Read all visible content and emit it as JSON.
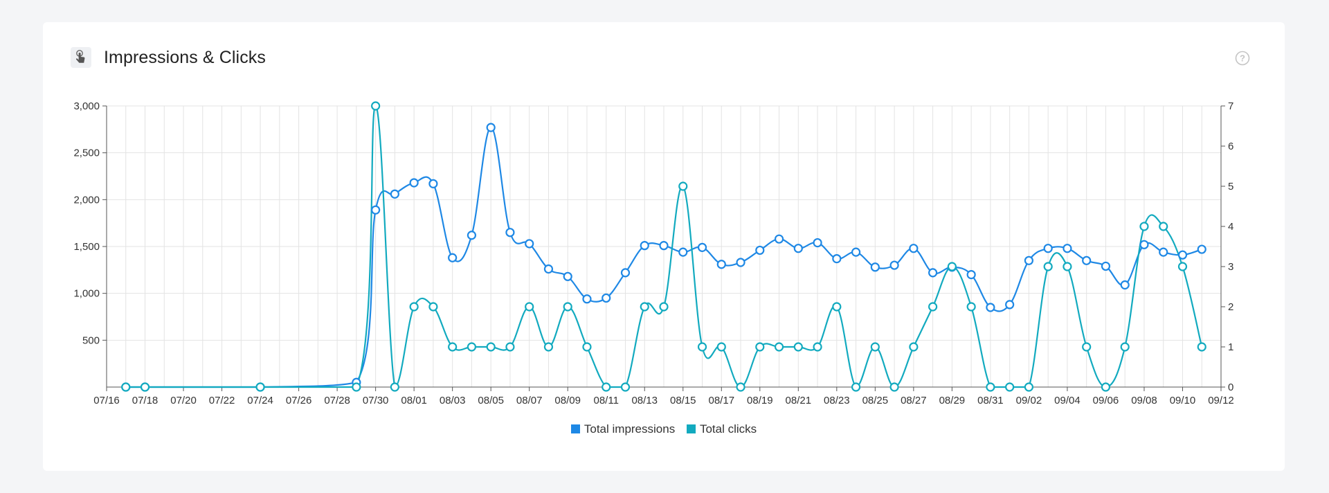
{
  "card": {
    "title": "Impressions & Clicks",
    "title_icon": "touch-icon",
    "help_icon": "question-circle-icon"
  },
  "colors": {
    "impressions": "#1e88e5",
    "clicks": "#12aabf",
    "grid": "#e3e3e3",
    "axis": "#555555"
  },
  "chart_data": {
    "type": "line",
    "title": "Impressions & Clicks",
    "x_ticks": [
      "07/16",
      "07/18",
      "07/20",
      "07/22",
      "07/24",
      "07/26",
      "07/28",
      "07/30",
      "08/01",
      "08/03",
      "08/05",
      "08/07",
      "08/09",
      "08/11",
      "08/13",
      "08/15",
      "08/17",
      "08/19",
      "08/21",
      "08/23",
      "08/25",
      "08/27",
      "08/29",
      "08/31",
      "09/02",
      "09/04",
      "09/06",
      "09/08",
      "09/10",
      "09/12"
    ],
    "x_range": [
      "07/16",
      "09/12"
    ],
    "y_left": {
      "ticks": [
        "500",
        "1,000",
        "1,500",
        "2,000",
        "2,500",
        "3,000"
      ],
      "range": [
        0,
        3000
      ]
    },
    "y_right": {
      "ticks": [
        "0",
        "1",
        "2",
        "3",
        "4",
        "5",
        "6",
        "7"
      ],
      "range": [
        0,
        7
      ]
    },
    "grid": true,
    "legend": "bottom-center",
    "series": [
      {
        "name": "Total impressions",
        "axis": "left",
        "color": "#1e88e5",
        "x": [
          "07/17",
          "07/18",
          "07/24",
          "07/29",
          "07/30",
          "07/31",
          "08/01",
          "08/02",
          "08/03",
          "08/04",
          "08/05",
          "08/06",
          "08/07",
          "08/08",
          "08/09",
          "08/10",
          "08/11",
          "08/12",
          "08/13",
          "08/14",
          "08/15",
          "08/16",
          "08/17",
          "08/18",
          "08/19",
          "08/20",
          "08/21",
          "08/22",
          "08/23",
          "08/24",
          "08/25",
          "08/26",
          "08/27",
          "08/28",
          "08/29",
          "08/30",
          "08/31",
          "09/01",
          "09/02",
          "09/03",
          "09/04",
          "09/05",
          "09/06",
          "09/07",
          "09/08",
          "09/09",
          "09/10",
          "09/11"
        ],
        "values": [
          0,
          0,
          0,
          50,
          1890,
          2060,
          2180,
          2170,
          1380,
          1620,
          2770,
          1650,
          1530,
          1260,
          1180,
          940,
          950,
          1220,
          1510,
          1510,
          1440,
          1490,
          1310,
          1330,
          1460,
          1580,
          1480,
          1540,
          1370,
          1440,
          1280,
          1300,
          1480,
          1220,
          1280,
          1200,
          850,
          880,
          1350,
          1480,
          1480,
          1350,
          1290,
          1090,
          1520,
          1440,
          1410,
          1470
        ]
      },
      {
        "name": "Total clicks",
        "axis": "right",
        "color": "#12aabf",
        "x": [
          "07/17",
          "07/18",
          "07/24",
          "07/29",
          "07/30",
          "07/31",
          "08/01",
          "08/02",
          "08/03",
          "08/04",
          "08/05",
          "08/06",
          "08/07",
          "08/08",
          "08/09",
          "08/10",
          "08/11",
          "08/12",
          "08/13",
          "08/14",
          "08/15",
          "08/16",
          "08/17",
          "08/18",
          "08/19",
          "08/20",
          "08/21",
          "08/22",
          "08/23",
          "08/24",
          "08/25",
          "08/26",
          "08/27",
          "08/28",
          "08/29",
          "08/30",
          "08/31",
          "09/01",
          "09/02",
          "09/03",
          "09/04",
          "09/05",
          "09/06",
          "09/07",
          "09/08",
          "09/09",
          "09/10",
          "09/11"
        ],
        "values": [
          0,
          0,
          0,
          0,
          7,
          0,
          2,
          2,
          1,
          1,
          1,
          1,
          2,
          1,
          2,
          1,
          0,
          0,
          2,
          2,
          5,
          1,
          1,
          0,
          1,
          1,
          1,
          1,
          2,
          0,
          1,
          0,
          1,
          2,
          3,
          2,
          0,
          0,
          0,
          3,
          3,
          1,
          0,
          1,
          4,
          4,
          3,
          1
        ]
      }
    ]
  }
}
